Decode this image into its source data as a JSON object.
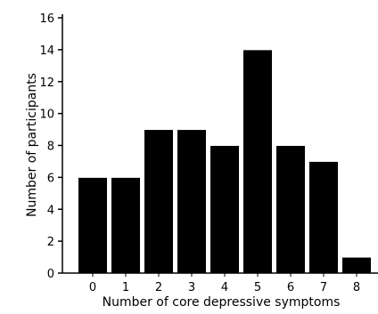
{
  "chart_data": {
    "type": "bar",
    "categories": [
      "0",
      "1",
      "2",
      "3",
      "4",
      "5",
      "6",
      "7",
      "8"
    ],
    "values": [
      6,
      6,
      9,
      9,
      8,
      14,
      8,
      7,
      1
    ],
    "title": "",
    "xlabel": "Number of core depressive symptoms",
    "ylabel": "Number of participants",
    "ylim": [
      0,
      16
    ],
    "yticks": [
      0,
      2,
      4,
      6,
      8,
      10,
      12,
      14,
      16
    ],
    "grid": false,
    "bar_color": "#000000",
    "axis_color": "#000000"
  }
}
